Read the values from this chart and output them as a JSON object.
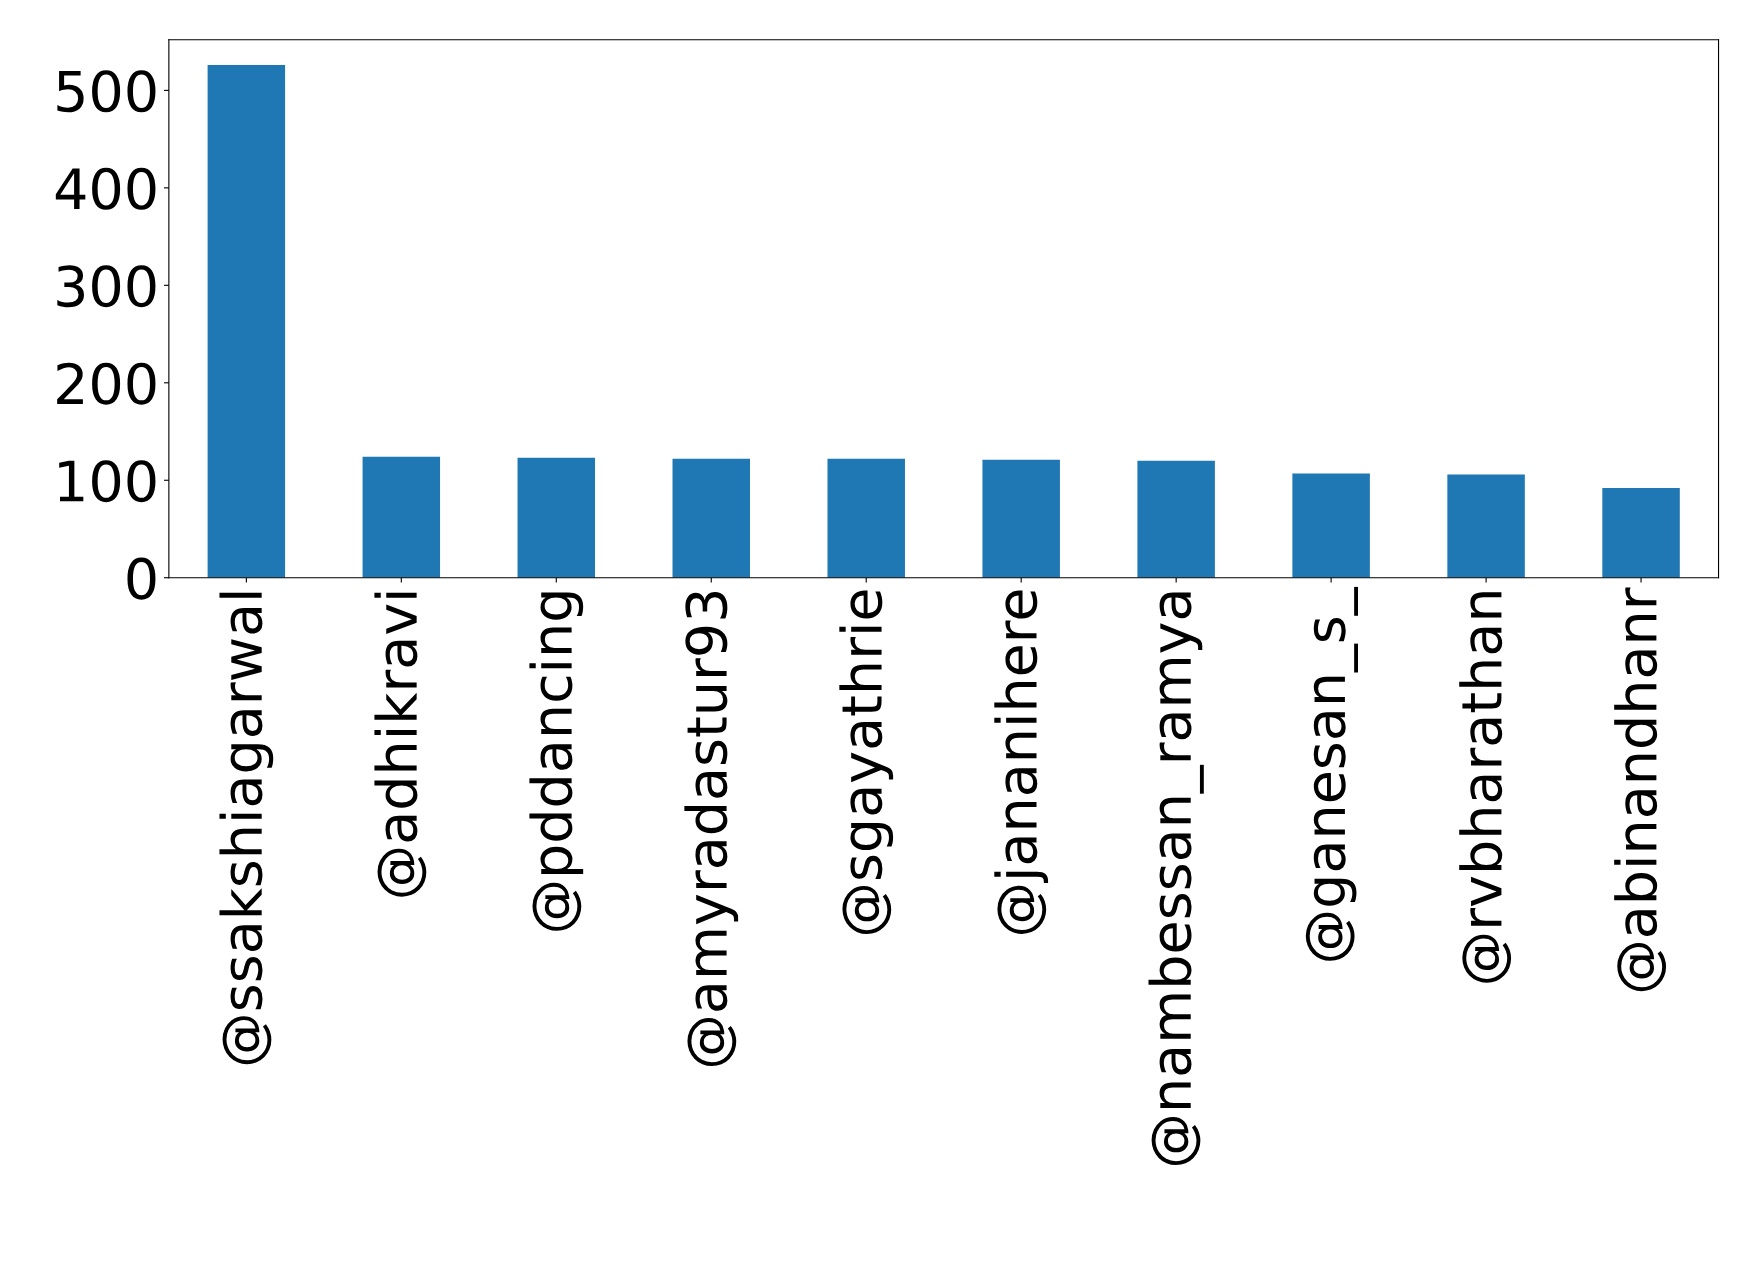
{
  "chart_data": {
    "type": "bar",
    "categories": [
      "@ssakshiagarwal",
      "@adhikravi",
      "@pddancing",
      "@amyradastur93",
      "@sgayathrie",
      "@jananihere",
      "@nambessan_ramya",
      "@ganesan_s_",
      "@rvbharathan",
      "@abinandhanr"
    ],
    "values": [
      526,
      124,
      123,
      122,
      122,
      121,
      120,
      107,
      106,
      92
    ],
    "color": "#1f77b4",
    "ylim": [
      0,
      552
    ],
    "yticks": [
      0,
      100,
      200,
      300,
      400,
      500
    ],
    "grid": false,
    "legend": false
  }
}
